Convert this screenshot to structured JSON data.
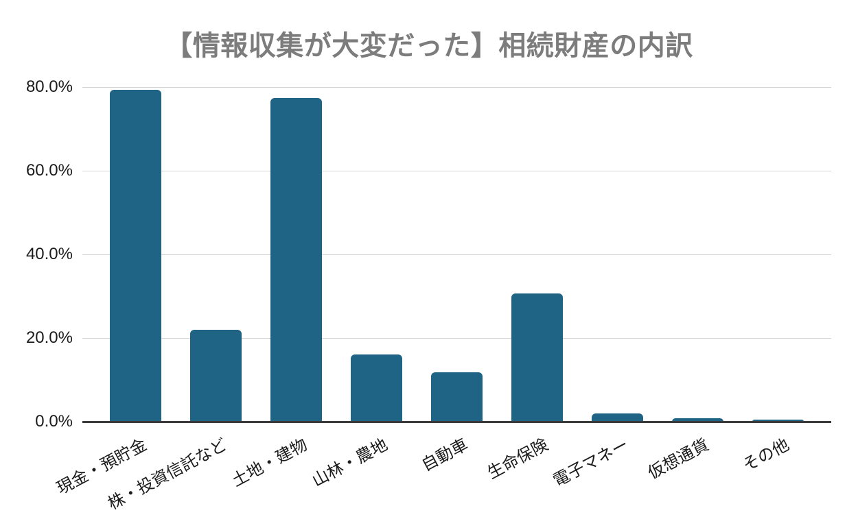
{
  "title": "【情報収集が大変だった】相続財産の内訳",
  "colors": {
    "background": "#ffffff",
    "bar": "#1f6485",
    "title_text": "#7c7c7c",
    "axis_text": "#1c1c1c",
    "gridline": "#d5d5d5",
    "baseline": "#3a3a3a"
  },
  "chart_data": {
    "type": "bar",
    "title": "【情報収集が大変だった】相続財産の内訳",
    "categories": [
      "現金・預貯金",
      "株・投資信託など",
      "土地・建物",
      "山林・農地",
      "自動車",
      "生命保険",
      "電子マネー",
      "仮想通貨",
      "その他"
    ],
    "values": [
      79.3,
      22.0,
      77.3,
      16.0,
      11.8,
      30.7,
      1.9,
      0.8,
      0.5
    ],
    "unit": "%",
    "xlabel": "",
    "ylabel": "",
    "ylim": [
      0,
      80
    ],
    "ytick_values": [
      0,
      20,
      40,
      60,
      80
    ],
    "ytick_labels": [
      "0.0%",
      "20.0%",
      "40.0%",
      "60.0%",
      "80.0%"
    ],
    "grid": "horizontal",
    "legend": "none",
    "bar_color": "#1f6485"
  }
}
